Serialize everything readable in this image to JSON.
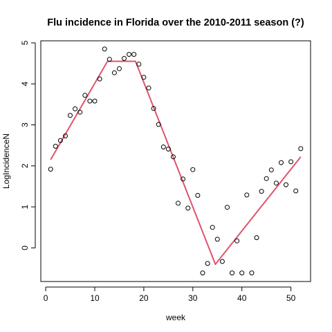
{
  "chart_data": {
    "type": "scatter",
    "title": "Flu incidence in Florida over the 2010-2011 season (?)",
    "xlabel": "week",
    "ylabel": "LogIncidenceN",
    "xlim": [
      -1,
      54
    ],
    "ylim": [
      -0.82,
      5.05
    ],
    "xticks": [
      0,
      10,
      20,
      30,
      40,
      50
    ],
    "yticks": [
      0,
      1,
      2,
      3,
      4,
      5
    ],
    "grid": false,
    "points": {
      "x": [
        1,
        2,
        3,
        4,
        5,
        6,
        7,
        8,
        9,
        10,
        11,
        12,
        13,
        14,
        15,
        16,
        17,
        18,
        19,
        20,
        21,
        22,
        23,
        24,
        25,
        26,
        27,
        28,
        29,
        30,
        31,
        32,
        33,
        34,
        35,
        36,
        37,
        38,
        39,
        40,
        41,
        42,
        43,
        44,
        45,
        46,
        47,
        48,
        49,
        50,
        51,
        52
      ],
      "y": [
        1.92,
        2.48,
        2.62,
        2.73,
        3.23,
        3.39,
        3.31,
        3.72,
        3.58,
        3.58,
        4.12,
        4.85,
        4.6,
        4.27,
        4.37,
        4.62,
        4.72,
        4.72,
        4.48,
        4.16,
        3.9,
        3.4,
        3.01,
        2.46,
        2.41,
        2.22,
        1.09,
        1.68,
        0.97,
        1.91,
        1.28,
        -0.61,
        -0.38,
        0.5,
        0.21,
        -0.33,
        0.99,
        -0.61,
        0.17,
        -0.61,
        1.29,
        -0.61,
        0.25,
        1.38,
        1.69,
        1.9,
        1.58,
        2.08,
        1.54,
        2.1,
        1.39,
        2.42
      ]
    },
    "fit_line": {
      "color": "#DF536B",
      "x": [
        1,
        12.6,
        18.3,
        34.6,
        52
      ],
      "y": [
        2.15,
        4.55,
        4.55,
        -0.4,
        2.22
      ]
    }
  }
}
